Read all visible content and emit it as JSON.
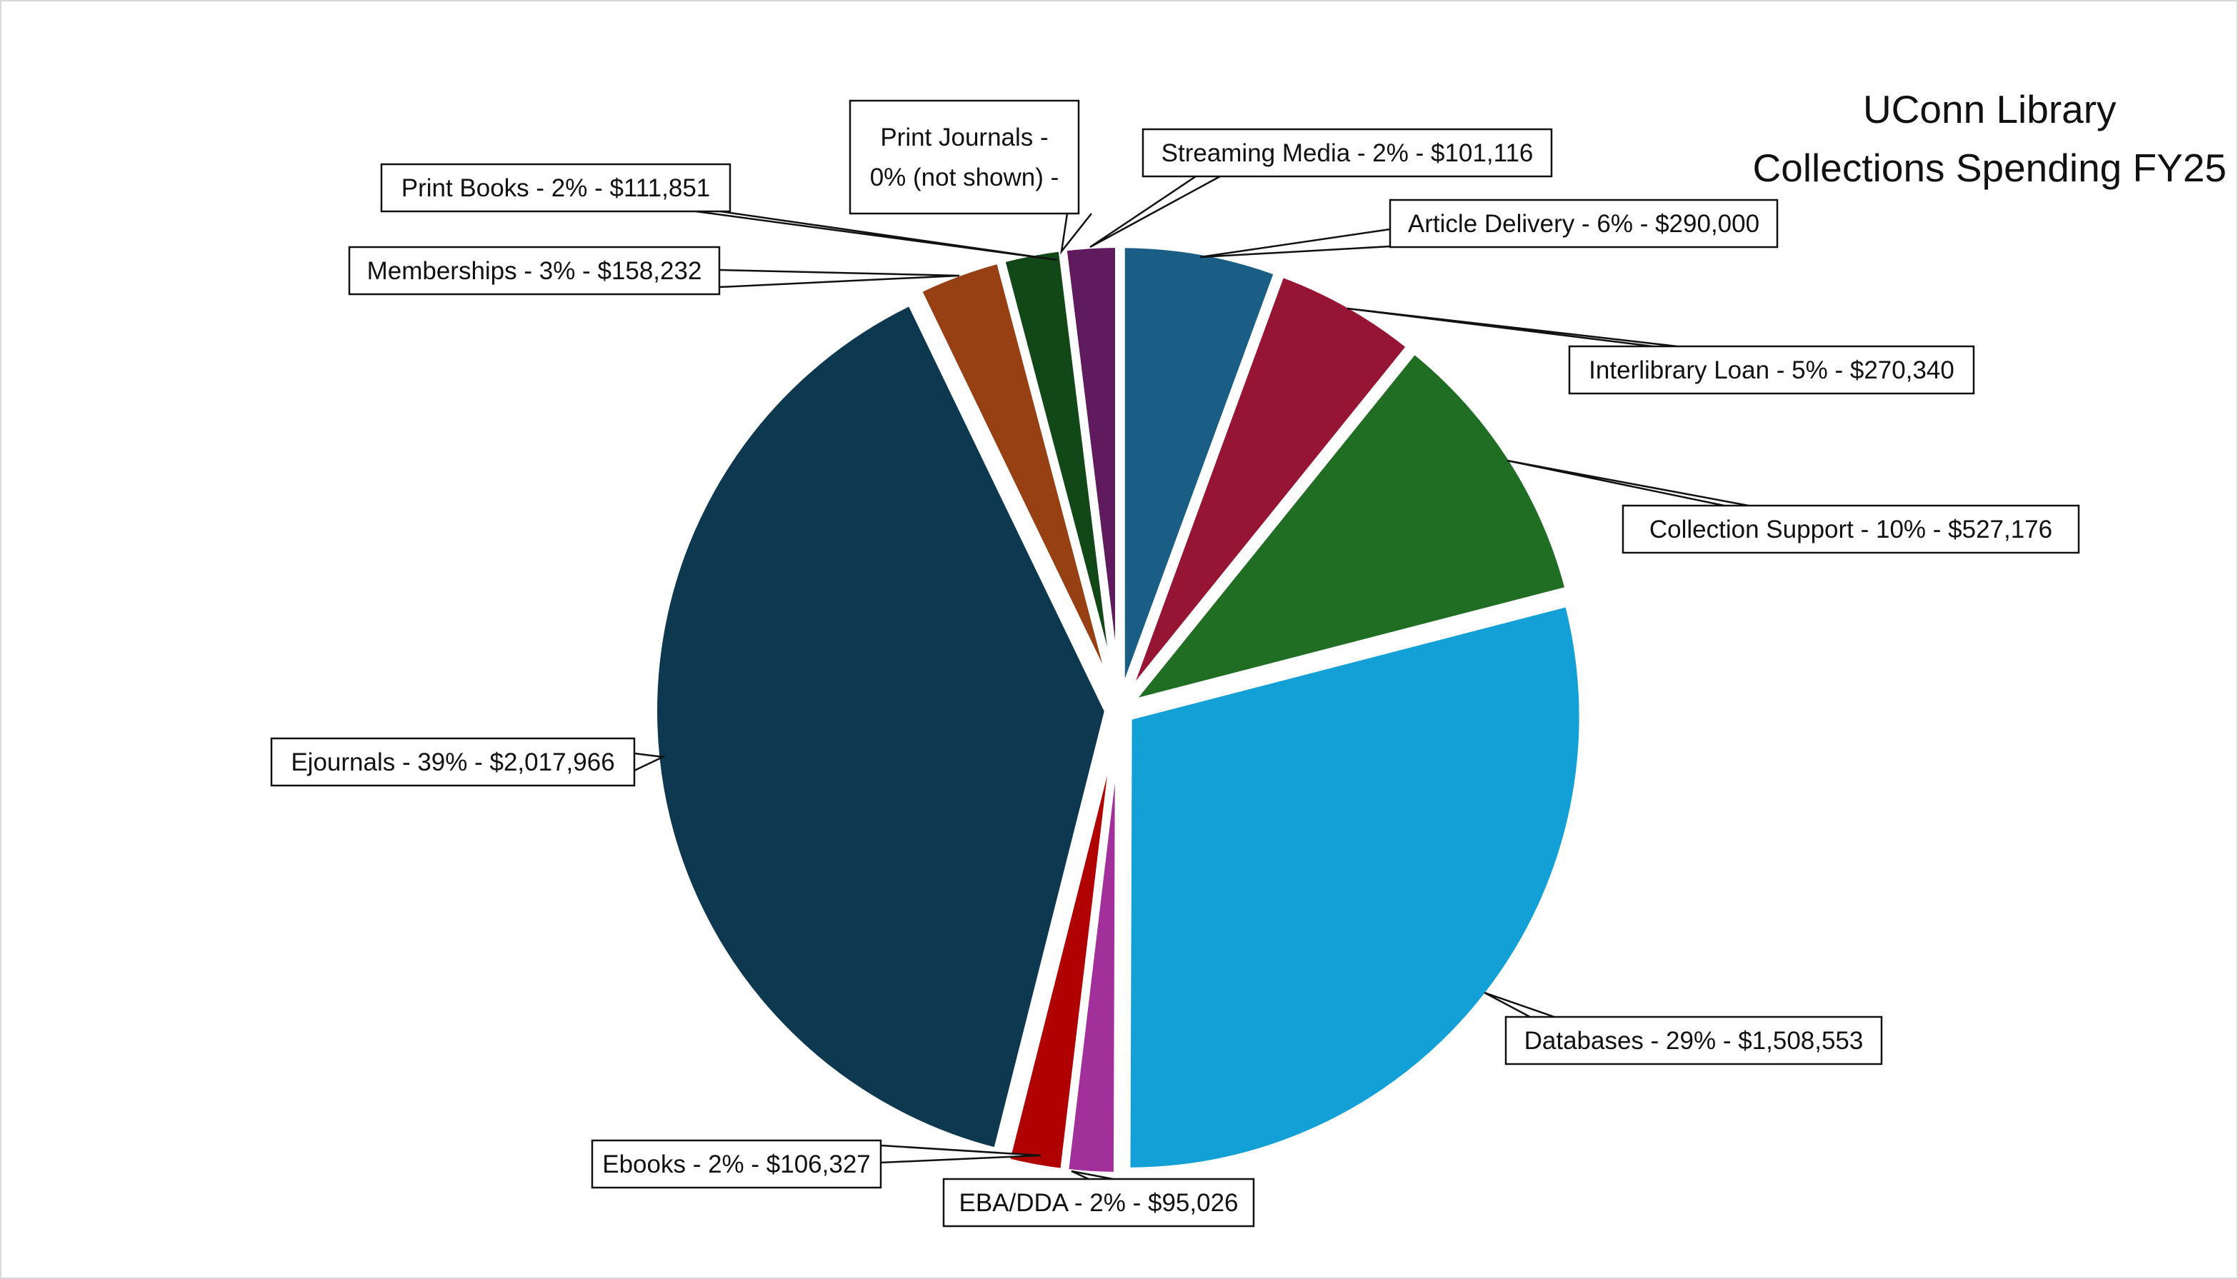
{
  "chart_data": {
    "type": "pie",
    "title": [
      "UConn Library",
      "Collections Spending FY25"
    ],
    "legend": "none (data labels with callouts)",
    "start_angle": "12 o'clock, clockwise",
    "slices": [
      {
        "name": "Article Delivery",
        "value": 290000,
        "label": "Article Delivery - 6% - $290,000",
        "color": "#1a5e85"
      },
      {
        "name": "Interlibrary Loan",
        "value": 270340,
        "label": "Interlibrary Loan - 5% - $270,340",
        "color": "#961534"
      },
      {
        "name": "Collection Support",
        "value": 527176,
        "label": "Collection Support - 10% - $527,176",
        "color": "#1f6e24"
      },
      {
        "name": "Databases",
        "value": 1508553,
        "label": "Databases - 29% - $1,508,553",
        "color": "#12a0d7"
      },
      {
        "name": "EBA/DDA",
        "value": 95026,
        "label": "EBA/DDA - 2% - $95,026",
        "color": "#a2309b"
      },
      {
        "name": "Ebooks",
        "value": 106327,
        "label": "Ebooks - 2% - $106,327",
        "color": "#b00202"
      },
      {
        "name": "Ejournals",
        "value": 2017966,
        "label": "Ejournals - 39% - $2,017,966",
        "color": "#0d3850"
      },
      {
        "name": "Memberships",
        "value": 158232,
        "label": "Memberships - 3% - $158,232",
        "color": "#974013"
      },
      {
        "name": "Print Books",
        "value": 111851,
        "label": "Print Books - 2% - $111,851",
        "color": "#124818"
      },
      {
        "name": "Print Journals",
        "value": 0,
        "label": [
          "Print Journals -",
          "0% (not shown) -"
        ],
        "color": "#3b1f4a"
      },
      {
        "name": "Streaming Media",
        "value": 101116,
        "label": "Streaming Media - 2% - $101,116",
        "color": "#5f1b5d"
      }
    ]
  }
}
